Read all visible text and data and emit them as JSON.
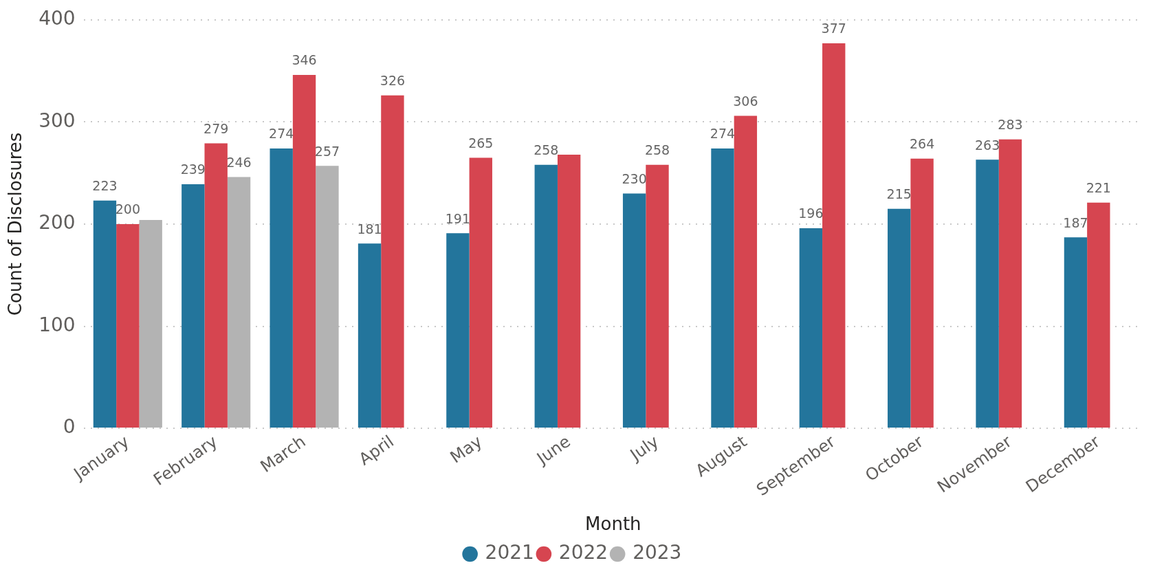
{
  "chart_data": {
    "type": "bar",
    "xlabel": "Month",
    "ylabel": "Count of Disclosures",
    "categories": [
      "January",
      "February",
      "March",
      "April",
      "May",
      "June",
      "July",
      "August",
      "September",
      "October",
      "November",
      "December"
    ],
    "series": [
      {
        "name": "2021",
        "color": "#23759c",
        "values": [
          223,
          239,
          274,
          181,
          191,
          258,
          230,
          274,
          196,
          215,
          263,
          187
        ],
        "value_labels": [
          "223",
          "239",
          "274",
          "181",
          "191",
          "258",
          "230",
          "274",
          "196",
          "215",
          "263",
          "187"
        ]
      },
      {
        "name": "2022",
        "color": "#d64550",
        "values": [
          200,
          279,
          346,
          326,
          265,
          268,
          258,
          306,
          377,
          264,
          283,
          221
        ],
        "value_labels": [
          "200",
          "279",
          "346",
          "326",
          "265",
          null,
          "258",
          "306",
          "377",
          "264",
          "283",
          "221"
        ]
      },
      {
        "name": "2023",
        "color": "#b3b3b3",
        "values": [
          204,
          246,
          257,
          null,
          null,
          null,
          null,
          null,
          null,
          null,
          null,
          null
        ],
        "value_labels": [
          null,
          "246",
          "257",
          null,
          null,
          null,
          null,
          null,
          null,
          null,
          null,
          null
        ]
      }
    ],
    "ylim": [
      0,
      400
    ],
    "yticks": [
      0,
      100,
      200,
      300,
      400
    ],
    "grid": "y",
    "legend": "bottom",
    "marker": "circle"
  }
}
